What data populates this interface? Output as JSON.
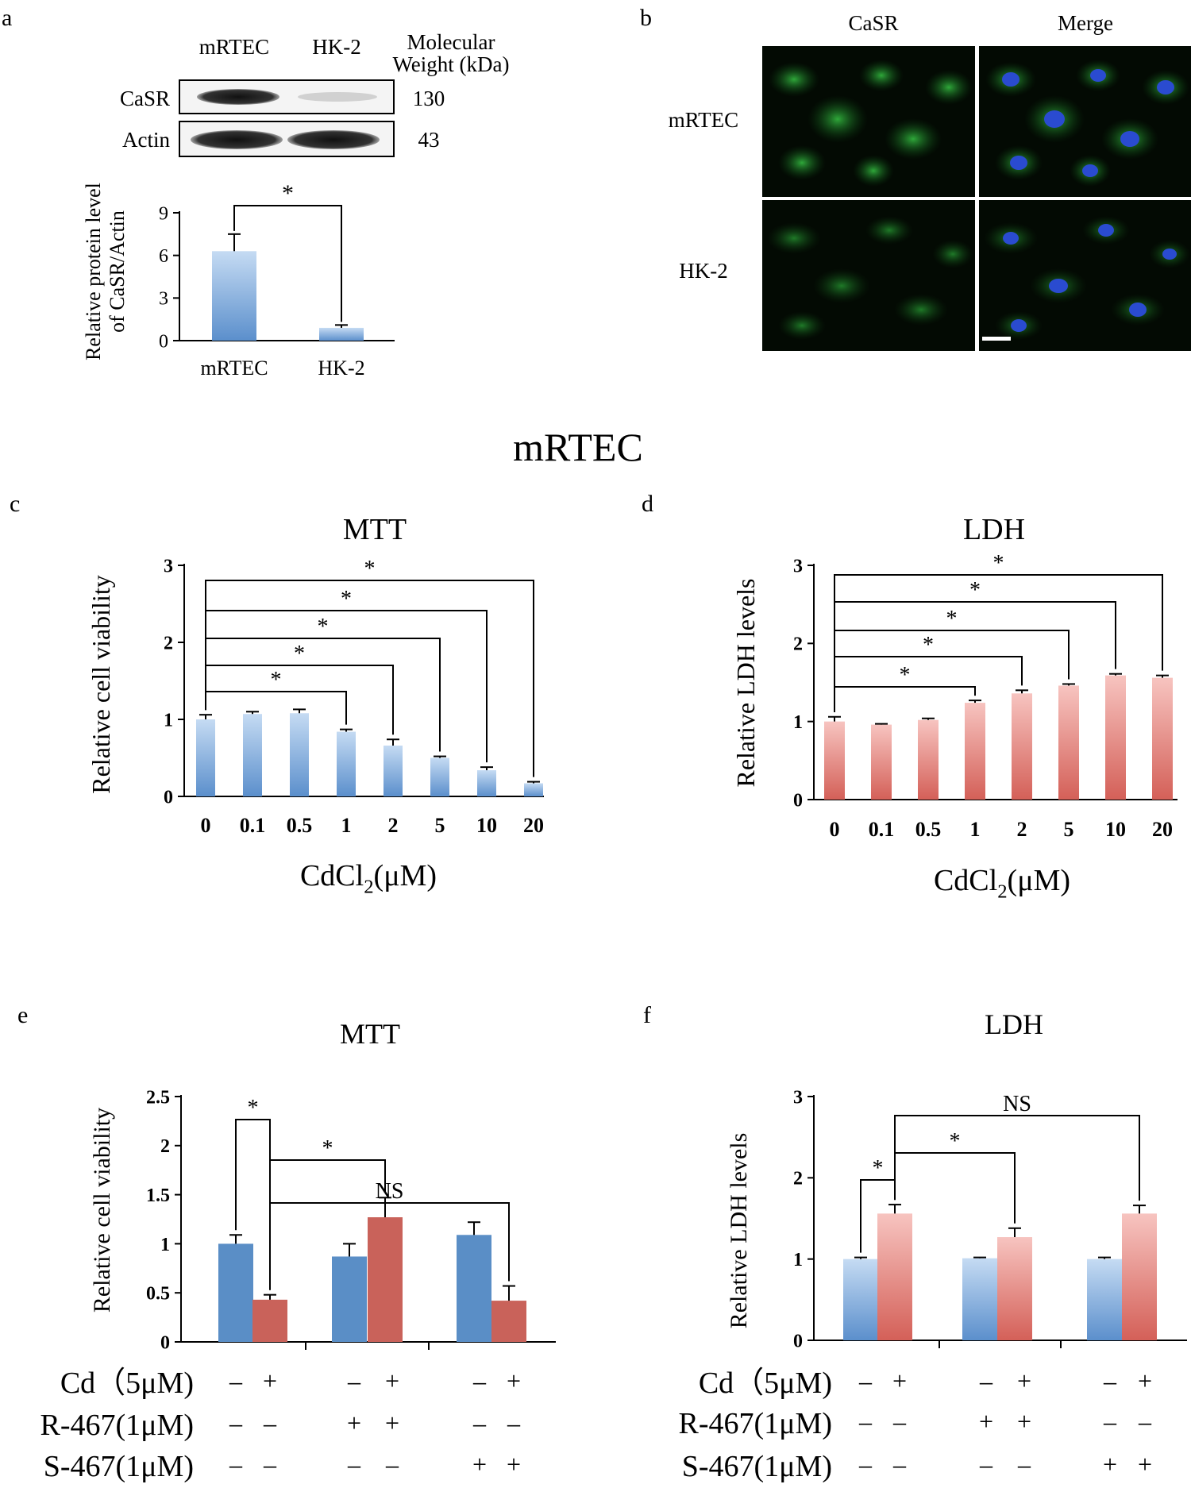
{
  "figure": {
    "section_title": "mRTEC",
    "panel_labels": [
      "a",
      "b",
      "c",
      "d",
      "e",
      "f"
    ]
  },
  "panel_a": {
    "blot_columns": [
      "mRTEC",
      "HK-2"
    ],
    "mw_header_line1": "Molecular",
    "mw_header_line2": "Weight (kDa)",
    "blot_rows": [
      {
        "protein": "CaSR",
        "mw": "130"
      },
      {
        "protein": "Actin",
        "mw": "43"
      }
    ]
  },
  "panel_b": {
    "column_headers": [
      "CaSR",
      "Merge"
    ],
    "row_labels": [
      "mRTEC",
      "HK-2"
    ]
  },
  "colors": {
    "blue": "#5b8fcc",
    "blue_light": "#b3cdee",
    "red": "#d46058",
    "red_light": "#f4b3ae",
    "solid_blue": "#5a8ec6",
    "solid_red": "#c9625a"
  },
  "chart_data": [
    {
      "panel": "a",
      "type": "bar",
      "title": "",
      "categories": [
        "mRTEC",
        "HK-2"
      ],
      "values": [
        6.3,
        0.9
      ],
      "errors": [
        1.2,
        0.2
      ],
      "ylabel_line1": "Relative protein level",
      "ylabel_line2": "of CaSR/Actin",
      "xlabel": "",
      "ylim": [
        0,
        9
      ],
      "yticks": [
        "0",
        "3",
        "6",
        "9"
      ],
      "significance": [
        {
          "from": 0,
          "to": 1,
          "label": "*"
        }
      ]
    },
    {
      "panel": "c",
      "type": "bar",
      "title": "MTT",
      "categories": [
        "0",
        "0.1",
        "0.5",
        "1",
        "2",
        "5",
        "10",
        "20"
      ],
      "values": [
        1.0,
        1.07,
        1.08,
        0.84,
        0.66,
        0.5,
        0.34,
        0.17
      ],
      "errors": [
        0.06,
        0.03,
        0.05,
        0.03,
        0.08,
        0.02,
        0.04,
        0.02
      ],
      "ylabel": "Relative cell viability",
      "xlabel_main": "CdCl",
      "xlabel_sub": "2",
      "xlabel_unit": "(μM)",
      "ylim": [
        0,
        3
      ],
      "yticks": [
        "0",
        "1",
        "2",
        "3"
      ],
      "significance": [
        {
          "from": 0,
          "to": 3,
          "label": "*"
        },
        {
          "from": 0,
          "to": 4,
          "label": "*"
        },
        {
          "from": 0,
          "to": 5,
          "label": "*"
        },
        {
          "from": 0,
          "to": 6,
          "label": "*"
        },
        {
          "from": 0,
          "to": 7,
          "label": "*"
        }
      ]
    },
    {
      "panel": "d",
      "type": "bar",
      "title": "LDH",
      "categories": [
        "0",
        "0.1",
        "0.5",
        "1",
        "2",
        "5",
        "10",
        "20"
      ],
      "values": [
        1.0,
        0.96,
        1.02,
        1.24,
        1.36,
        1.46,
        1.59,
        1.56
      ],
      "errors": [
        0.06,
        0.01,
        0.02,
        0.03,
        0.04,
        0.02,
        0.02,
        0.03
      ],
      "ylabel": "Relative LDH levels",
      "xlabel_main": "CdCl",
      "xlabel_sub": "2",
      "xlabel_unit": "(μM)",
      "ylim": [
        0,
        3
      ],
      "yticks": [
        "0",
        "1",
        "2",
        "3"
      ],
      "significance": [
        {
          "from": 0,
          "to": 3,
          "label": "*"
        },
        {
          "from": 0,
          "to": 4,
          "label": "*"
        },
        {
          "from": 0,
          "to": 5,
          "label": "*"
        },
        {
          "from": 0,
          "to": 6,
          "label": "*"
        },
        {
          "from": 0,
          "to": 7,
          "label": "*"
        }
      ]
    },
    {
      "panel": "e",
      "type": "bar",
      "title": "MTT",
      "values": [
        1.0,
        0.43,
        0.87,
        1.27,
        1.09,
        0.42
      ],
      "errors": [
        0.09,
        0.05,
        0.13,
        0.2,
        0.13,
        0.15
      ],
      "ylabel": "Relative cell viability",
      "ylim": [
        0,
        2.5
      ],
      "yticks": [
        "0",
        "0.5",
        "1",
        "1.5",
        "2",
        "2.5"
      ],
      "treatments": [
        {
          "label": "Cd（5μM)",
          "signs": [
            "–",
            "+",
            "–",
            "+",
            "–",
            "+"
          ]
        },
        {
          "label": "R-467(1μM)",
          "signs": [
            "–",
            "–",
            "+",
            "+",
            "–",
            "–"
          ]
        },
        {
          "label": "S-467(1μM)",
          "signs": [
            "–",
            "–",
            "–",
            "–",
            "+",
            "+"
          ]
        }
      ],
      "significance": [
        {
          "from": 0,
          "to": 1,
          "label": "*"
        },
        {
          "from": 1,
          "to": 3,
          "label": "*"
        },
        {
          "from": 1,
          "to": 5,
          "label": "NS"
        }
      ]
    },
    {
      "panel": "f",
      "type": "bar",
      "title": "LDH",
      "values": [
        1.0,
        1.56,
        1.01,
        1.27,
        1.0,
        1.56
      ],
      "errors": [
        0.02,
        0.11,
        0.01,
        0.11,
        0.02,
        0.1
      ],
      "ylabel": "Relative LDH levels",
      "ylim": [
        0,
        3
      ],
      "yticks": [
        "0",
        "1",
        "2",
        "3"
      ],
      "treatments": [
        {
          "label": "Cd（5μM)",
          "signs": [
            "–",
            "+",
            "–",
            "+",
            "–",
            "+"
          ]
        },
        {
          "label": "R-467(1μM)",
          "signs": [
            "–",
            "–",
            "+",
            "+",
            "–",
            "–"
          ]
        },
        {
          "label": "S-467(1μM)",
          "signs": [
            "–",
            "–",
            "–",
            "–",
            "+",
            "+"
          ]
        }
      ],
      "significance": [
        {
          "from": 0,
          "to": 1,
          "label": "*"
        },
        {
          "from": 1,
          "to": 3,
          "label": "*"
        },
        {
          "from": 1,
          "to": 5,
          "label": "NS"
        }
      ]
    }
  ]
}
